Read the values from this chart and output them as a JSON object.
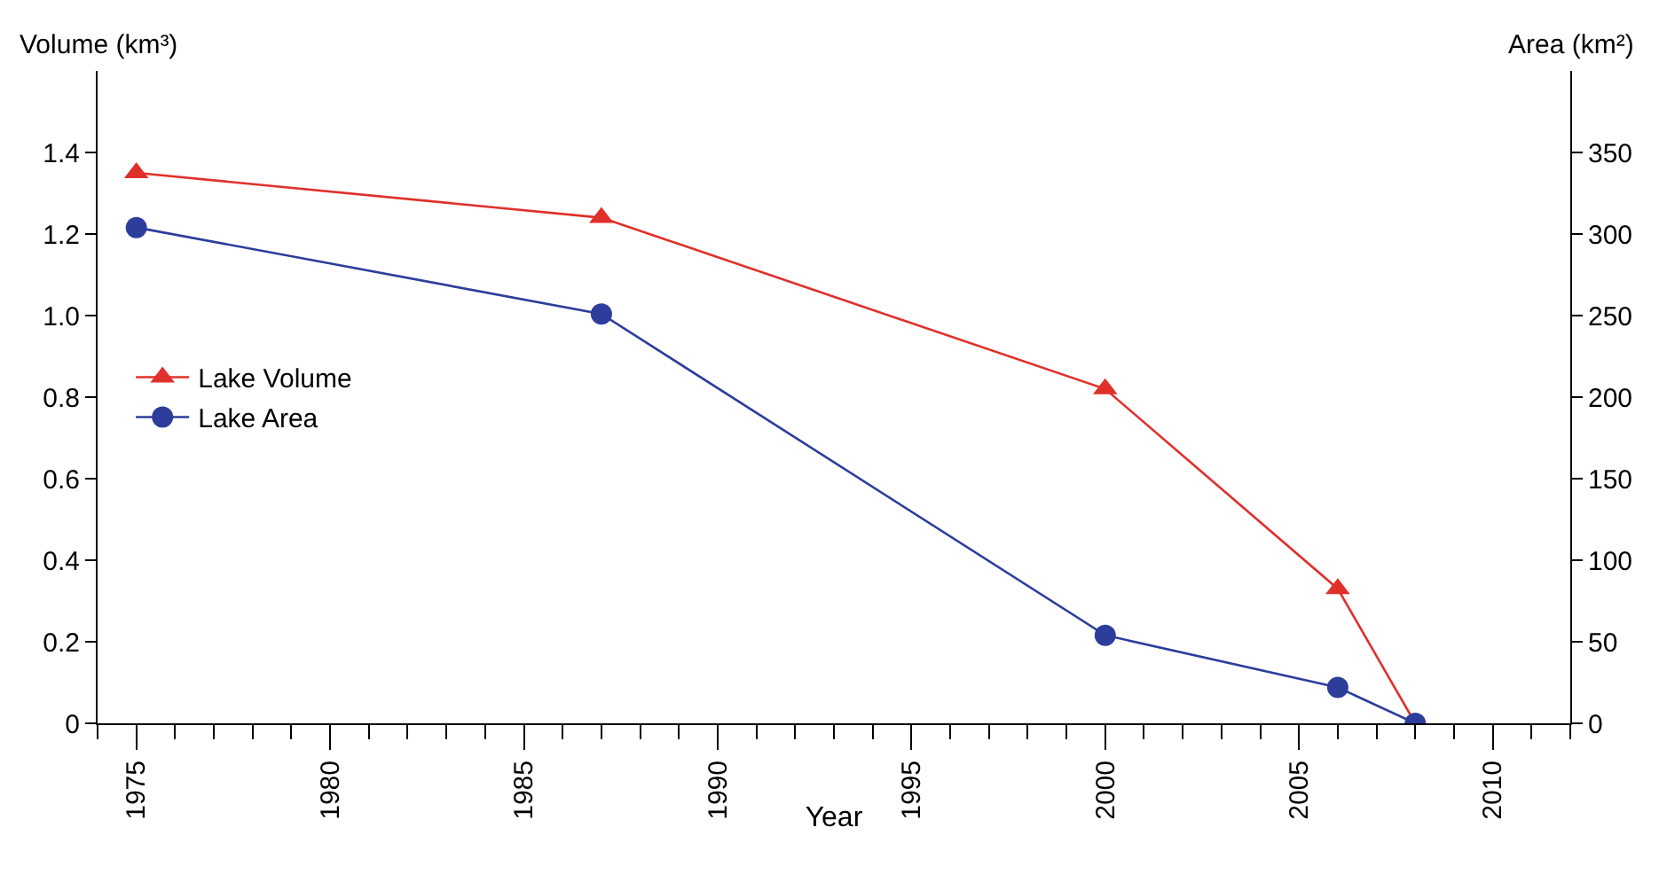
{
  "chart_data": {
    "type": "line",
    "xlabel": "Year",
    "ylabel": "Volume (km³)",
    "y2label": "Area (km²)",
    "x": [
      1975,
      1987,
      2000,
      2006,
      2008
    ],
    "series": [
      {
        "name": "Lake Volume",
        "color": "#e0302a",
        "marker": "triangle",
        "values": [
          1.35,
          1.24,
          0.82,
          0.33,
          0
        ]
      },
      {
        "name": "Lake Area",
        "color": "#2d3d9c",
        "marker": "circle",
        "axis": "y2",
        "values": [
          304,
          251,
          54,
          22,
          0
        ]
      }
    ],
    "xlim": [
      1974,
      2012
    ],
    "xticks": [
      1975,
      1980,
      1985,
      1990,
      1995,
      2000,
      2005,
      2010
    ],
    "ylim": [
      0,
      1.6
    ],
    "yticks": [
      0,
      0.2,
      0.4,
      0.6,
      0.8,
      {
        "value": 1,
        "label": "1.0"
      },
      1.2,
      1.4
    ],
    "y2lim": [
      0,
      400
    ],
    "y2ticks": [
      0,
      50,
      100,
      150,
      200,
      250,
      300,
      350
    ],
    "legend": "left",
    "grid": false,
    "line_style": "solid"
  }
}
